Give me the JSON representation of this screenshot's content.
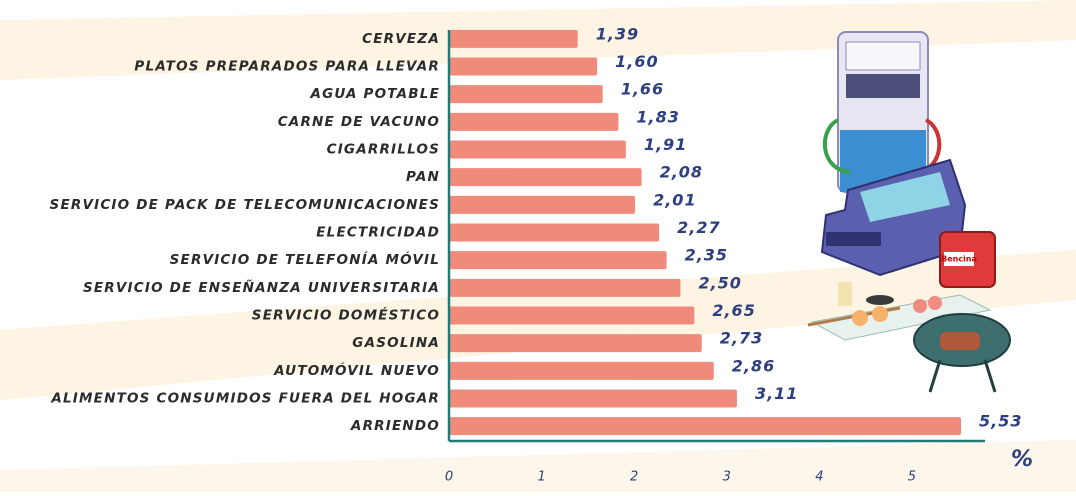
{
  "chart_data": {
    "type": "hbar",
    "categories": [
      "CERVEZA",
      "PLATOS PREPARADOS PARA LLEVAR",
      "AGUA POTABLE",
      "CARNE DE VACUNO",
      "CIGARRILLOS",
      "PAN",
      "SERVICIO DE PACK DE TELECOMUNICACIONES",
      "ELECTRICIDAD",
      "SERVICIO DE TELEFONÍA MÓVIL",
      "SERVICIO DE ENSEÑANZA UNIVERSITARIA",
      "SERVICIO DOMÉSTICO",
      "GASOLINA",
      "AUTOMÓVIL NUEVO",
      "ALIMENTOS CONSUMIDOS FUERA DEL HOGAR",
      "ARRIENDO"
    ],
    "values": [
      1.39,
      1.6,
      1.66,
      1.83,
      1.91,
      2.08,
      2.01,
      2.27,
      2.35,
      2.5,
      2.65,
      2.73,
      2.86,
      3.11,
      5.53
    ],
    "value_labels": [
      "1,39",
      "1,60",
      "1,66",
      "1,83",
      "1,91",
      "2,08",
      "2,01",
      "2,27",
      "2,35",
      "2,50",
      "2,65",
      "2,73",
      "2,86",
      "3,11",
      "5,53"
    ],
    "color": "#f08a7b",
    "x_label": "%",
    "xlim": [
      0,
      5.8
    ],
    "xticks": [
      0,
      1,
      2,
      3,
      4,
      5
    ],
    "grid": false,
    "illustration_text": "Bencina"
  }
}
